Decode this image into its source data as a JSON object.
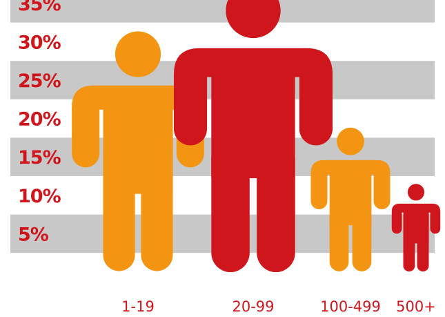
{
  "chart_data": {
    "type": "bar",
    "mark": "pictogram-person",
    "categories": [
      "1-19",
      "20-99",
      "100-499",
      "500+"
    ],
    "values": [
      30,
      36,
      18,
      11
    ],
    "ylim": [
      0,
      36
    ],
    "yticks": [
      5,
      10,
      15,
      20,
      25,
      30,
      35
    ],
    "ytick_labels": [
      "5%",
      "10%",
      "15%",
      "20%",
      "25%",
      "30%",
      "35%"
    ],
    "grid": "alternating-bands",
    "colors": {
      "band": "#c8c8c8",
      "tick_label": "#cf161c",
      "category_label": "#cf161c",
      "series": [
        "#f39512",
        "#cf161c",
        "#f39512",
        "#cf161c"
      ]
    }
  }
}
